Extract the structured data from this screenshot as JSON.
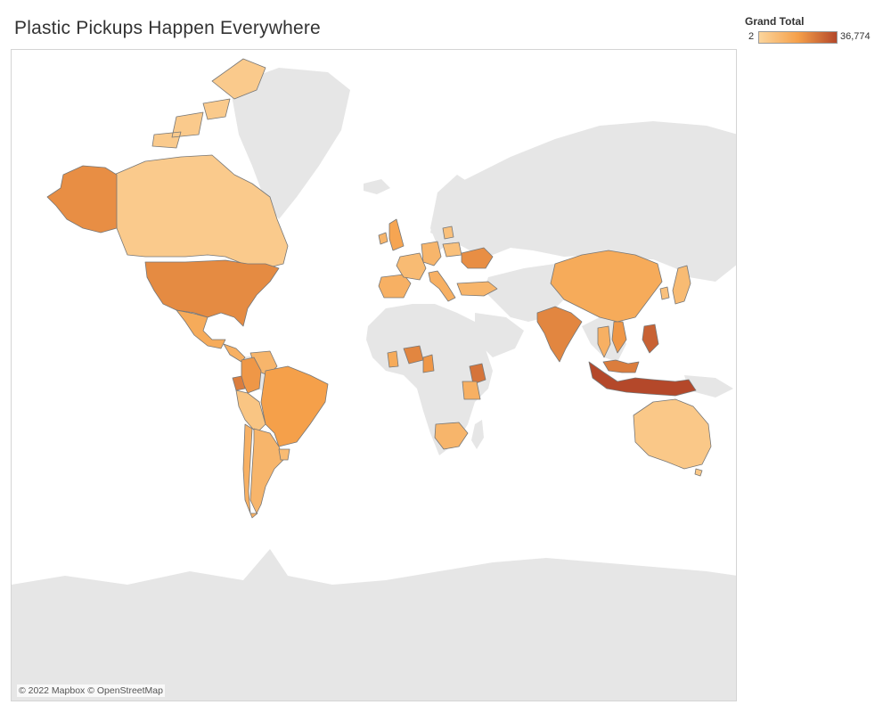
{
  "title": "Plastic Pickups Happen Everywhere",
  "legend": {
    "title": "Grand Total",
    "min_label": "2",
    "max_label": "36,774",
    "color_low": "#fbd59c",
    "color_mid": "#f5a04a",
    "color_high": "#b4482a"
  },
  "attribution": "© 2022 Mapbox © OpenStreetMap",
  "colors": {
    "base_land": "#e6e6e6",
    "border": "#777777",
    "ocean": "#ffffff"
  },
  "highlighted_regions": [
    {
      "name": "Canada",
      "level": 0.1
    },
    {
      "name": "Canadian Arctic",
      "level": 0.1
    },
    {
      "name": "Alaska (United States)",
      "level": 0.6
    },
    {
      "name": "United States",
      "level": 0.62
    },
    {
      "name": "Mexico",
      "level": 0.4
    },
    {
      "name": "Central America",
      "level": 0.35
    },
    {
      "name": "Colombia",
      "level": 0.55
    },
    {
      "name": "Venezuela",
      "level": 0.3
    },
    {
      "name": "Ecuador",
      "level": 0.7
    },
    {
      "name": "Peru",
      "level": 0.15
    },
    {
      "name": "Brazil",
      "level": 0.5
    },
    {
      "name": "Argentina",
      "level": 0.3
    },
    {
      "name": "Chile",
      "level": 0.35
    },
    {
      "name": "Uruguay",
      "level": 0.25
    },
    {
      "name": "Spain",
      "level": 0.35
    },
    {
      "name": "France",
      "level": 0.25
    },
    {
      "name": "United Kingdom",
      "level": 0.45
    },
    {
      "name": "Ireland",
      "level": 0.3
    },
    {
      "name": "Germany",
      "level": 0.3
    },
    {
      "name": "Italy",
      "level": 0.35
    },
    {
      "name": "Poland",
      "level": 0.2
    },
    {
      "name": "Ukraine",
      "level": 0.6
    },
    {
      "name": "Turkey",
      "level": 0.3
    },
    {
      "name": "Sweden",
      "level": 0.2
    },
    {
      "name": "Ghana",
      "level": 0.4
    },
    {
      "name": "Nigeria",
      "level": 0.65
    },
    {
      "name": "Cameroon",
      "level": 0.55
    },
    {
      "name": "Kenya",
      "level": 0.75
    },
    {
      "name": "Tanzania",
      "level": 0.35
    },
    {
      "name": "South Africa",
      "level": 0.3
    },
    {
      "name": "India",
      "level": 0.65
    },
    {
      "name": "China",
      "level": 0.4
    },
    {
      "name": "Japan",
      "level": 0.25
    },
    {
      "name": "South Korea",
      "level": 0.2
    },
    {
      "name": "Thailand",
      "level": 0.35
    },
    {
      "name": "Vietnam",
      "level": 0.55
    },
    {
      "name": "Philippines",
      "level": 0.85
    },
    {
      "name": "Malaysia",
      "level": 0.7
    },
    {
      "name": "Indonesia",
      "level": 1.0
    },
    {
      "name": "Australia",
      "level": 0.12
    },
    {
      "name": "New Zealand",
      "level": 0.12
    }
  ]
}
